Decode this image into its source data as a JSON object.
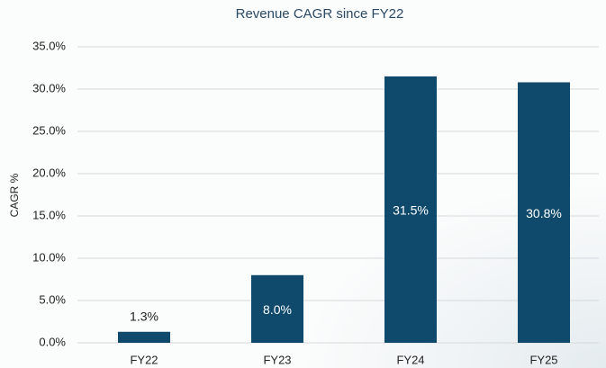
{
  "chart_data": {
    "type": "bar",
    "title": "Revenue CAGR since FY22",
    "y_label": "CAGR %",
    "categories": [
      "FY22",
      "FY23",
      "FY24",
      "FY25"
    ],
    "values": [
      1.3,
      8.0,
      31.5,
      30.8
    ],
    "value_labels": [
      "1.3%",
      "8.0%",
      "31.5%",
      "30.8%"
    ],
    "color": "#0f4a6c",
    "ylim": [
      0,
      35
    ],
    "yticks": [
      {
        "value": 0,
        "label": "0.0%"
      },
      {
        "value": 5,
        "label": "5.0%"
      },
      {
        "value": 10,
        "label": "10.0%"
      },
      {
        "value": 15,
        "label": "15.0%"
      },
      {
        "value": 20,
        "label": "20.0%"
      },
      {
        "value": 25,
        "label": "25.0%"
      },
      {
        "value": 30,
        "label": "30.0%"
      },
      {
        "value": 35,
        "label": "35.0%"
      }
    ],
    "grid": true
  }
}
